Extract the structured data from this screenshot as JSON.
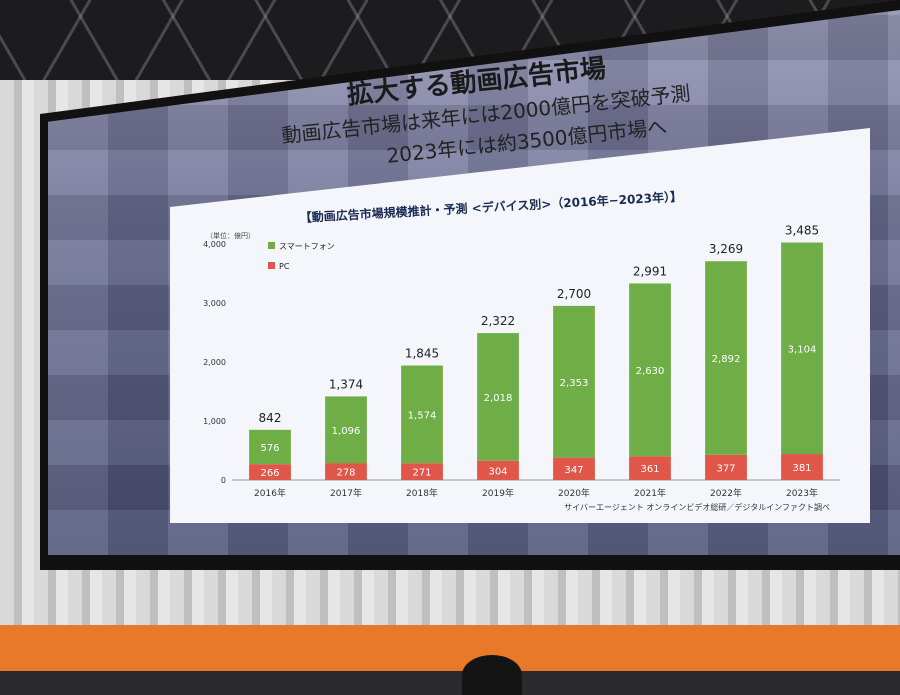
{
  "slide": {
    "title": "拡大する動画広告市場",
    "subtitle_line1": "動画広告市場は来年には2000億円を突破予測",
    "subtitle_line2": "2023年には約3500億円市場へ",
    "source": "サイバーエージェント オンラインビデオ総研／デジタルインファクト調べ"
  },
  "chart_data": {
    "type": "bar",
    "stacked": true,
    "title": "【動画広告市場規模推計・予測 <デバイス別>（2016年−2023年）】",
    "unit_label": "（単位：億円）",
    "categories": [
      "2016年",
      "2017年",
      "2018年",
      "2019年",
      "2020年",
      "2021年",
      "2022年",
      "2023年"
    ],
    "series": [
      {
        "name": "PC",
        "color": "#e0574a",
        "values": [
          266,
          278,
          271,
          304,
          347,
          361,
          377,
          381
        ]
      },
      {
        "name": "スマートフォン",
        "color": "#6fae46",
        "values": [
          576,
          1096,
          1574,
          2018,
          2353,
          2630,
          2892,
          3104
        ]
      }
    ],
    "totals": [
      "842",
      "1,374",
      "1,845",
      "2,322",
      "2,700",
      "2,991",
      "3,269",
      "3,485"
    ],
    "series_labels": {
      "PC": [
        "266",
        "278",
        "271",
        "304",
        "347",
        "361",
        "377",
        "381"
      ],
      "スマートフォン": [
        "576",
        "1,096",
        "1,574",
        "2,018",
        "2,353",
        "2,630",
        "2,892",
        "3,104"
      ]
    },
    "ylim": [
      0,
      4000
    ],
    "yticks": [
      0,
      1000,
      2000,
      3000,
      4000
    ],
    "ytick_labels": [
      "0",
      "1,000",
      "2,000",
      "3,000",
      "4,000"
    ],
    "legend_position": "top-left",
    "grid": false
  }
}
